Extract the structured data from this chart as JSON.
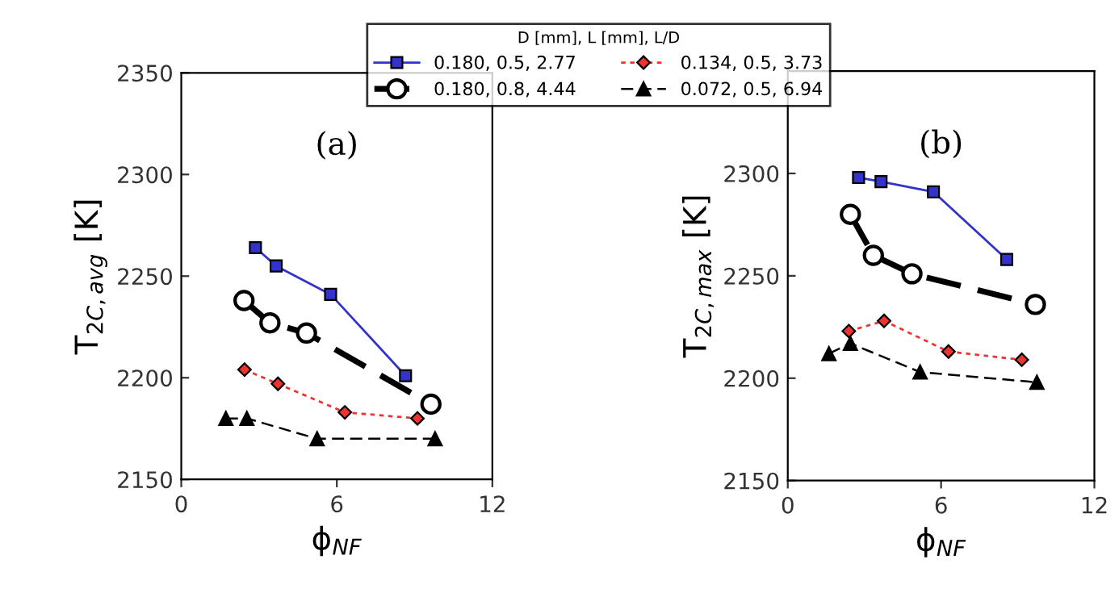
{
  "chart_data": [
    {
      "type": "line",
      "xlabel": "ϕ$_{NF}$",
      "ylabel": "T$_{2C,avg}$ [K]",
      "xlim": [
        0,
        12
      ],
      "xticks": [
        0,
        6,
        12
      ],
      "ylim": [
        2150,
        2350
      ],
      "yticks": [
        2150,
        2200,
        2250,
        2300,
        2350
      ],
      "grid": false,
      "legend": "top right",
      "legend_title": "D [mm], L [mm], L/D",
      "annotations": [
        "(a)"
      ],
      "series": [
        {
          "name": "0.180, 0.5, 2.77",
          "color": "#3333cc",
          "marker": "square",
          "line_style": "solid",
          "x": [
            2.86,
            3.66,
            5.76,
            8.65
          ],
          "values": [
            2264,
            2255,
            2241,
            2201
          ]
        },
        {
          "name": "0.180, 0.8, 4.44",
          "color": "#000000",
          "marker": "circle",
          "line_style": "dashed",
          "x": [
            2.42,
            3.42,
            4.83,
            9.63
          ],
          "values": [
            2238,
            2227,
            2222,
            2187
          ]
        },
        {
          "name": "0.134, 0.5, 3.73",
          "color": "#ee3333",
          "marker": "diamond",
          "line_style": "dotted",
          "x": [
            2.44,
            3.73,
            6.31,
            9.11
          ],
          "values": [
            2204,
            2197,
            2183,
            2180
          ]
        },
        {
          "name": "0.072, 0.5, 6.94",
          "color": "#000000",
          "marker": "triangle",
          "line_style": "dashed",
          "x": [
            1.72,
            2.53,
            5.24,
            9.79
          ],
          "values": [
            2180,
            2180,
            2170,
            2170
          ]
        }
      ]
    },
    {
      "type": "line",
      "xlabel": "ϕ$_{NF}$",
      "ylabel": "T$_{2C,max}$ [K]",
      "xlim": [
        0,
        12
      ],
      "xticks": [
        0,
        6,
        12
      ],
      "ylim": [
        2150,
        2350
      ],
      "yticks": [
        2150,
        2200,
        2250,
        2300
      ],
      "grid": false,
      "annotations": [
        "(b)"
      ],
      "series": [
        {
          "color": "#3333cc",
          "marker": "square",
          "line_style": "solid",
          "x": [
            2.77,
            3.65,
            5.7,
            8.57
          ],
          "values": [
            2298,
            2296,
            2291,
            2258
          ]
        },
        {
          "color": "#000000",
          "marker": "circle",
          "line_style": "dashed",
          "x": [
            2.45,
            3.35,
            4.86,
            9.69
          ],
          "values": [
            2280,
            2260,
            2251,
            2236
          ]
        },
        {
          "color": "#ee3333",
          "marker": "diamond",
          "line_style": "dotted",
          "x": [
            2.39,
            3.77,
            6.29,
            9.16
          ],
          "values": [
            2223,
            2228,
            2213,
            2209
          ]
        },
        {
          "color": "#000000",
          "marker": "triangle",
          "line_style": "dashed",
          "x": [
            1.61,
            2.45,
            5.18,
            9.75
          ],
          "values": [
            2212,
            2217,
            2203,
            2198
          ]
        }
      ]
    }
  ]
}
